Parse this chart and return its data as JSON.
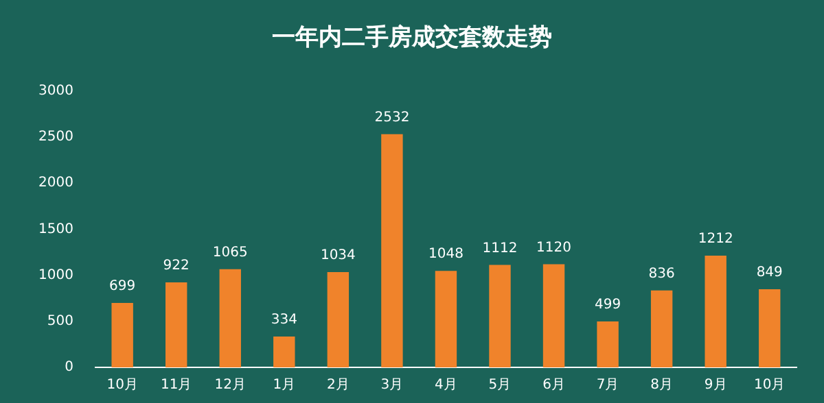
{
  "chart_data": {
    "type": "bar",
    "title": "一年内二手房成交套数走势",
    "categories": [
      "10月",
      "11月",
      "12月",
      "1月",
      "2月",
      "3月",
      "4月",
      "5月",
      "6月",
      "7月",
      "8月",
      "9月",
      "10月"
    ],
    "values": [
      699,
      922,
      1065,
      334,
      1034,
      2532,
      1048,
      1112,
      1120,
      499,
      836,
      1212,
      849
    ],
    "color": "#f0832b",
    "ylim": [
      0,
      3000
    ],
    "yticks": [
      0,
      500,
      1000,
      1500,
      2000,
      2500,
      3000
    ],
    "data_labels": true
  }
}
